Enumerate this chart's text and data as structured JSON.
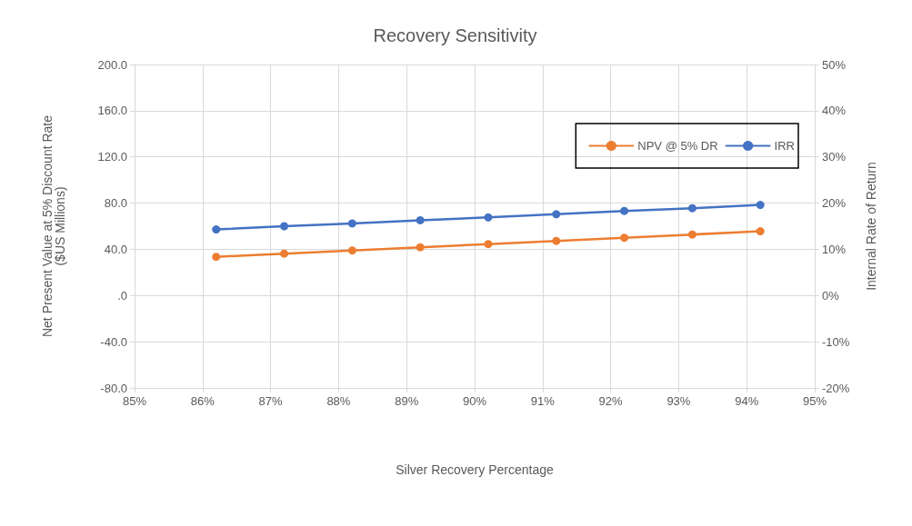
{
  "chart_data": {
    "type": "line",
    "title": "Recovery Sensitivity",
    "xlabel": "Silver Recovery Percentage",
    "ylabel": "Net Present Value at 5% Discount Rate\n($US Millions)",
    "y2label": "Internal Rate of Return",
    "x": [
      86.2,
      87.2,
      88.2,
      89.2,
      90.2,
      91.2,
      92.2,
      93.2,
      94.2
    ],
    "series": [
      {
        "name": "NPV @ 5% DR",
        "color": "#ed7d31",
        "values": [
          33.5,
          36.3,
          39.0,
          41.8,
          44.5,
          47.3,
          50.0,
          52.8,
          55.6
        ]
      },
      {
        "name": "IRR",
        "color": "#4472c4",
        "axis": "y2",
        "values": [
          14.3,
          15.0,
          15.6,
          16.3,
          16.9,
          17.6,
          18.3,
          18.9,
          19.6
        ]
      }
    ],
    "xlim": [
      85,
      95
    ],
    "xticks": [
      {
        "value": 85,
        "label": "85%"
      },
      {
        "value": 86,
        "label": "86%"
      },
      {
        "value": 87,
        "label": "87%"
      },
      {
        "value": 88,
        "label": "88%"
      },
      {
        "value": 89,
        "label": "89%"
      },
      {
        "value": 90,
        "label": "90%"
      },
      {
        "value": 91,
        "label": "91%"
      },
      {
        "value": 92,
        "label": "92%"
      },
      {
        "value": 93,
        "label": "93%"
      },
      {
        "value": 94,
        "label": "94%"
      },
      {
        "value": 95,
        "label": "95%"
      }
    ],
    "ylim": [
      -80,
      200
    ],
    "yticks": [
      {
        "value": -80,
        "label": "-80.0"
      },
      {
        "value": -40,
        "label": "-40.0"
      },
      {
        "value": 0,
        "label": ".0"
      },
      {
        "value": 40,
        "label": "40.0"
      },
      {
        "value": 80,
        "label": "80.0"
      },
      {
        "value": 120,
        "label": "120.0"
      },
      {
        "value": 160,
        "label": "160.0"
      },
      {
        "value": 200,
        "label": "200.0"
      }
    ],
    "y2lim": [
      -20,
      50
    ],
    "y2ticks": [
      {
        "value": -20,
        "label": "-20%"
      },
      {
        "value": -10,
        "label": "-10%"
      },
      {
        "value": 0,
        "label": "0%"
      },
      {
        "value": 10,
        "label": "10%"
      },
      {
        "value": 20,
        "label": "20%"
      },
      {
        "value": 30,
        "label": "30%"
      },
      {
        "value": 40,
        "label": "40%"
      },
      {
        "value": 50,
        "label": "50%"
      }
    ],
    "grid": true,
    "legend": "top right",
    "marker": "circle",
    "line_style": "solid"
  }
}
